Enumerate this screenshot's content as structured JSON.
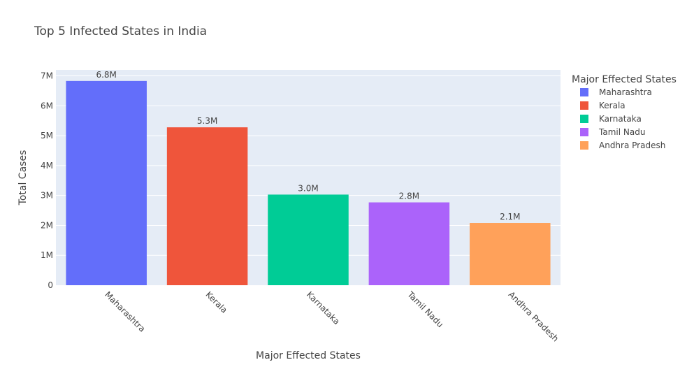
{
  "chart_data": {
    "type": "bar",
    "title": "Top 5 Infected States in India",
    "xlabel": "Major Effected States",
    "ylabel": "Total Cases",
    "categories": [
      "Maharashtra",
      "Kerala",
      "Karnataka",
      "Tamil Nadu",
      "Andhra Pradesh"
    ],
    "values": [
      6830000,
      5280000,
      3030000,
      2770000,
      2080000
    ],
    "data_labels": [
      "6.8M",
      "5.3M",
      "3.0M",
      "2.8M",
      "2.1M"
    ],
    "colors": [
      "#636efa",
      "#EF553B",
      "#00cc96",
      "#ab63fa",
      "#FFA15A"
    ],
    "ylim": [
      0,
      7200000
    ],
    "yticks": [
      {
        "value": 0,
        "label": "0"
      },
      {
        "value": 1000000,
        "label": "1M"
      },
      {
        "value": 2000000,
        "label": "2M"
      },
      {
        "value": 3000000,
        "label": "3M"
      },
      {
        "value": 4000000,
        "label": "4M"
      },
      {
        "value": 5000000,
        "label": "5M"
      },
      {
        "value": 6000000,
        "label": "6M"
      },
      {
        "value": 7000000,
        "label": "7M"
      }
    ],
    "grid": true,
    "legend": {
      "title": "Major Effected States",
      "placement": "right",
      "items": [
        "Maharashtra",
        "Kerala",
        "Karnataka",
        "Tamil Nadu",
        "Andhra Pradesh"
      ]
    },
    "plot_background": "#E5ECF6"
  }
}
